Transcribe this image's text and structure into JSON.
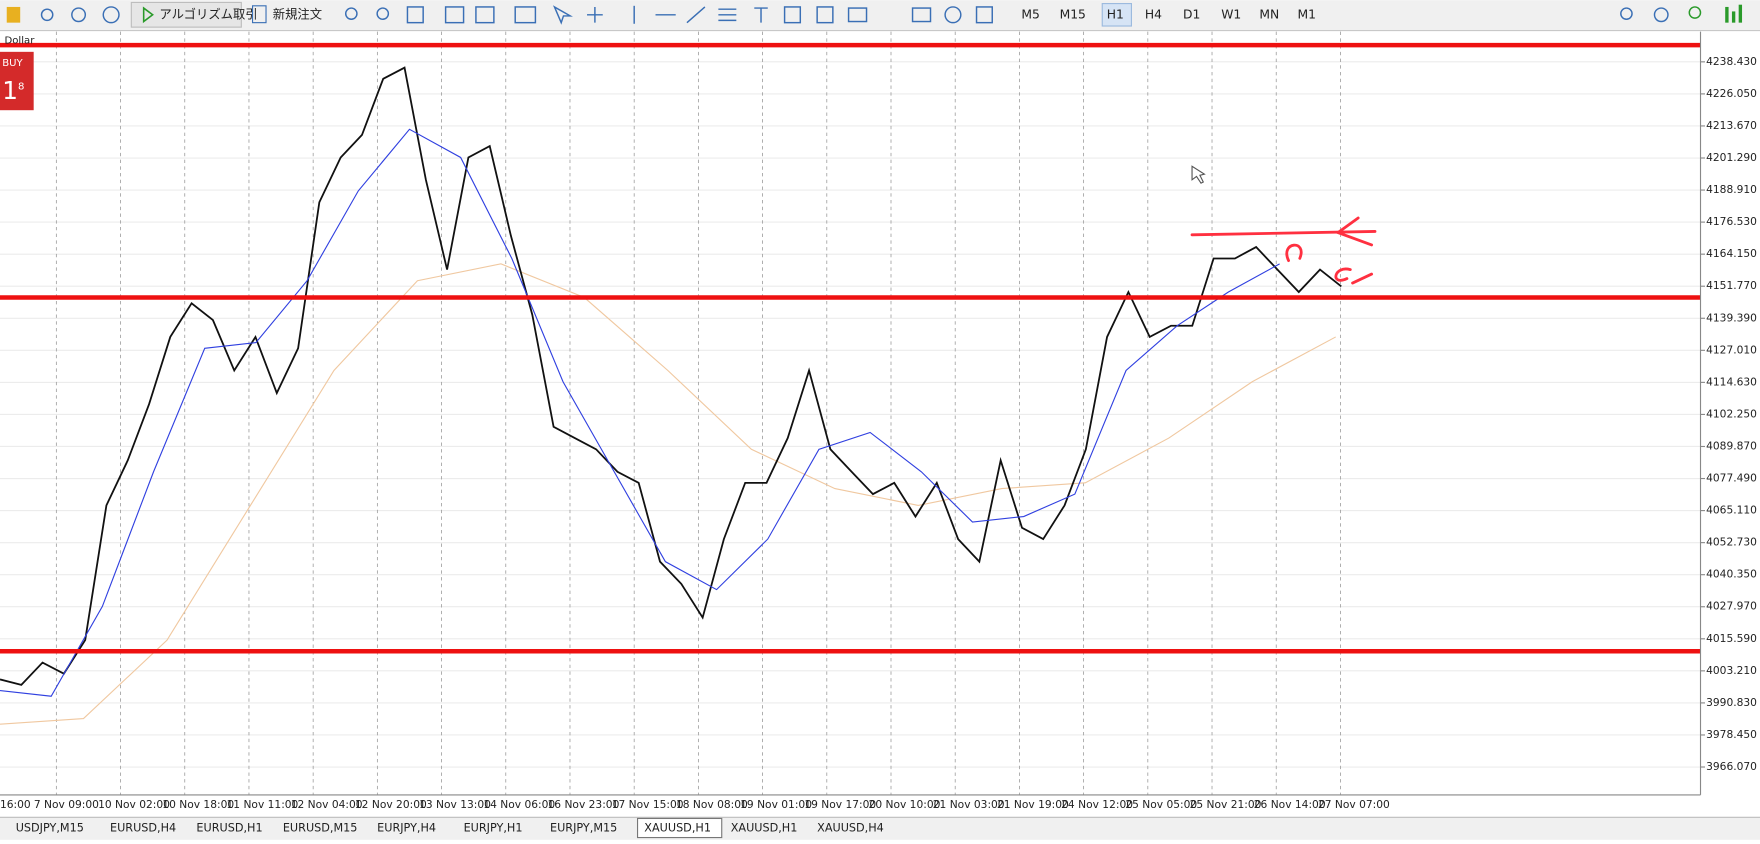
{
  "toolbar": {
    "algo_button": "アルゴリズム取引",
    "new_order": "新規注文",
    "timeframes": [
      {
        "label": "M5",
        "active": false
      },
      {
        "label": "M15",
        "active": false
      },
      {
        "label": "H1",
        "active": true
      },
      {
        "label": "H4",
        "active": false
      },
      {
        "label": "D1",
        "active": false
      },
      {
        "label": "W1",
        "active": false
      },
      {
        "label": "MN",
        "active": false
      },
      {
        "label": "M1",
        "active": false
      }
    ]
  },
  "chart": {
    "symbol_label": "Dollar",
    "trade_panel": {
      "side": "BUY",
      "price_big": "1",
      "price_small": "8"
    },
    "ylim": [
      3955.3,
      4250.1
    ],
    "yticks": [
      {
        "value": 4238.43,
        "label": "4238.430"
      },
      {
        "value": 4226.05,
        "label": "4226.050"
      },
      {
        "value": 4213.67,
        "label": "4213.670"
      },
      {
        "value": 4201.29,
        "label": "4201.290"
      },
      {
        "value": 4188.91,
        "label": "4188.910"
      },
      {
        "value": 4176.53,
        "label": "4176.530"
      },
      {
        "value": 4164.15,
        "label": "4164.150"
      },
      {
        "value": 4151.77,
        "label": "4151.770"
      },
      {
        "value": 4139.39,
        "label": "4139.390"
      },
      {
        "value": 4127.01,
        "label": "4127.010"
      },
      {
        "value": 4114.63,
        "label": "4114.630"
      },
      {
        "value": 4102.25,
        "label": "4102.250"
      },
      {
        "value": 4089.87,
        "label": "4089.870"
      },
      {
        "value": 4077.49,
        "label": "4077.490"
      },
      {
        "value": 4065.11,
        "label": "4065.110"
      },
      {
        "value": 4052.73,
        "label": "4052.730"
      },
      {
        "value": 4040.35,
        "label": "4040.350"
      },
      {
        "value": 4027.97,
        "label": "4027.970"
      },
      {
        "value": 4015.59,
        "label": "4015.590"
      },
      {
        "value": 4003.21,
        "label": "4003.210"
      },
      {
        "value": 3990.83,
        "label": "3990.830"
      },
      {
        "value": 3978.45,
        "label": "3978.450"
      },
      {
        "value": 3966.07,
        "label": "3966.070"
      }
    ],
    "time_labels": [
      "16:00",
      "7 Nov 09:00",
      "10 Nov 02:00",
      "10 Nov 18:00",
      "11 Nov 11:00",
      "12 Nov 04:00",
      "12 Nov 20:00",
      "13 Nov 13:00",
      "14 Nov 06:00",
      "16 Nov 23:00",
      "17 Nov 15:00",
      "18 Nov 08:00",
      "19 Nov 01:00",
      "19 Nov 17:00",
      "20 Nov 10:00",
      "21 Nov 03:00",
      "21 Nov 19:00",
      "24 Nov 12:00",
      "25 Nov 05:00",
      "25 Nov 21:00",
      "26 Nov 14:00",
      "27 Nov 07:00"
    ],
    "price": [
      3999.9,
      3997.8,
      4006.4,
      4002.1,
      4015.1,
      4067.1,
      4084.5,
      4106.2,
      4132.2,
      4145.2,
      4138.7,
      4119.2,
      4132.2,
      4110.5,
      4127.8,
      4184.2,
      4201.5,
      4210.2,
      4231.9,
      4236.2,
      4192.9,
      4158.2,
      4201.5,
      4205.9,
      4171.2,
      4140.8,
      4097.5,
      4093.1,
      4088.8,
      4080.1,
      4075.8,
      4045.4,
      4036.8,
      4023.8,
      4054.1,
      4075.8,
      4075.8,
      4093.1,
      4119.2,
      4088.8,
      4080.1,
      4071.5,
      4075.8,
      4062.8,
      4075.8,
      4054.1,
      4045.4,
      4084.5,
      4058.5,
      4054.1,
      4067.1,
      4088.8,
      4132.2,
      4149.5,
      4132.2,
      4136.5,
      4136.5,
      4162.5,
      4162.5,
      4166.9,
      4158.2,
      4149.5,
      4158.2,
      4151.7
    ],
    "ma_fast": [
      3995.6,
      3993.4,
      4028.1,
      4080.1,
      4127.8,
      4130.0,
      4153.9,
      4188.6,
      4212.4,
      4201.5,
      4162.5,
      4114.9,
      4080.1,
      4045.4,
      4034.6,
      4054.1,
      4088.8,
      4095.3,
      4080.1,
      4060.7,
      4062.8,
      4071.5,
      4119.2,
      4136.5,
      4149.5,
      4160.4
    ],
    "ma_slow": [
      3982.6,
      3984.8,
      4015.1,
      4067.1,
      4119.2,
      4153.9,
      4160.4,
      4147.4,
      4119.2,
      4088.8,
      4073.6,
      4067.1,
      4073.6,
      4075.8,
      4093.1,
      4114.9,
      4132.2
    ],
    "levels": [
      4244.9,
      4147.4,
      4010.8
    ]
  },
  "tabs": [
    {
      "label": "USDJPY,M15",
      "active": false
    },
    {
      "label": "EURUSD,H4",
      "active": false
    },
    {
      "label": "EURUSD,H1",
      "active": false
    },
    {
      "label": "EURUSD,M15",
      "active": false
    },
    {
      "label": "EURJPY,H4",
      "active": false
    },
    {
      "label": "EURJPY,H1",
      "active": false
    },
    {
      "label": "EURJPY,M15",
      "active": false
    },
    {
      "label": "XAUUSD,H1",
      "active": true
    },
    {
      "label": "XAUUSD,H1",
      "active": false
    },
    {
      "label": "XAUUSD,H4",
      "active": false
    }
  ]
}
